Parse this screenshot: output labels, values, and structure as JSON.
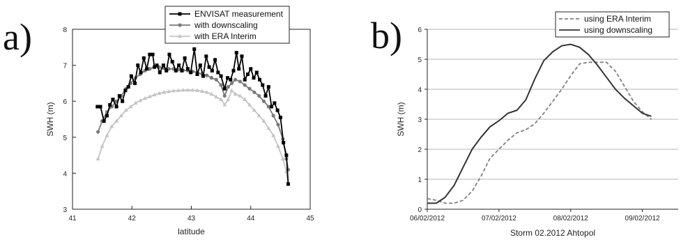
{
  "panels": {
    "a_letter": "a)",
    "b_letter": "b)"
  },
  "chart_data": [
    {
      "type": "line",
      "title": "",
      "xlabel": "latitude",
      "ylabel": "SWH (m)",
      "xlim": [
        41,
        45
      ],
      "ylim": [
        3,
        8
      ],
      "xticks": [
        41,
        42,
        43,
        44,
        45
      ],
      "yticks": [
        3,
        4,
        5,
        6,
        7,
        8
      ],
      "grid": false,
      "legend": "top-right",
      "series": [
        {
          "name": "ENVISAT measurement",
          "color": "#000000",
          "marker": "square",
          "x": [
            41.42,
            41.47,
            41.53,
            41.58,
            41.63,
            41.68,
            41.74,
            41.79,
            41.84,
            41.89,
            41.94,
            41.99,
            42.05,
            42.1,
            42.15,
            42.2,
            42.25,
            42.3,
            42.35,
            42.38,
            42.42,
            42.47,
            42.53,
            42.58,
            42.63,
            42.68,
            42.74,
            42.79,
            42.84,
            42.89,
            42.94,
            42.99,
            43.05,
            43.1,
            43.15,
            43.2,
            43.25,
            43.3,
            43.35,
            43.4,
            43.45,
            43.5,
            43.56,
            43.61,
            43.66,
            43.71,
            43.76,
            43.8,
            43.85,
            43.9,
            43.95,
            44.0,
            44.05,
            44.1,
            44.15,
            44.2,
            44.25,
            44.3,
            44.35,
            44.4,
            44.45,
            44.5,
            44.55,
            44.6,
            44.63
          ],
          "values": [
            5.85,
            5.85,
            5.45,
            5.6,
            5.9,
            6.05,
            5.85,
            6.15,
            6.0,
            6.3,
            6.4,
            6.7,
            6.5,
            7.0,
            6.8,
            7.2,
            6.9,
            7.3,
            7.3,
            6.95,
            7.0,
            6.8,
            7.0,
            6.85,
            7.3,
            7.1,
            6.85,
            7.0,
            6.85,
            7.2,
            6.9,
            6.8,
            7.45,
            6.75,
            7.0,
            6.7,
            7.25,
            6.95,
            6.85,
            7.15,
            6.8,
            6.7,
            6.35,
            6.65,
            6.6,
            6.85,
            7.35,
            6.9,
            7.25,
            6.6,
            6.75,
            6.9,
            6.65,
            6.8,
            6.6,
            6.45,
            6.15,
            6.4,
            5.85,
            5.95,
            5.75,
            5.55,
            4.85,
            4.5,
            3.7
          ]
        },
        {
          "name": "with downscaling",
          "color": "#7a7a7a",
          "marker": "circle",
          "x": [
            41.43,
            41.5,
            41.58,
            41.66,
            41.74,
            41.82,
            41.9,
            41.98,
            42.06,
            42.14,
            42.22,
            42.3,
            42.38,
            42.46,
            42.54,
            42.62,
            42.7,
            42.78,
            42.86,
            42.94,
            43.02,
            43.1,
            43.18,
            43.26,
            43.34,
            43.42,
            43.5,
            43.56,
            43.62,
            43.68,
            43.74,
            43.82,
            43.9,
            43.98,
            44.06,
            44.14,
            44.22,
            44.3,
            44.38,
            44.46,
            44.54,
            44.6,
            44.63
          ],
          "values": [
            5.15,
            5.45,
            5.7,
            5.85,
            6.0,
            6.15,
            6.35,
            6.5,
            6.65,
            6.75,
            6.85,
            6.9,
            6.95,
            6.95,
            6.92,
            6.9,
            6.9,
            6.88,
            6.86,
            6.85,
            6.83,
            6.8,
            6.76,
            6.72,
            6.65,
            6.6,
            6.45,
            6.15,
            6.4,
            6.5,
            6.6,
            6.55,
            6.45,
            6.35,
            6.25,
            6.15,
            6.0,
            5.85,
            5.6,
            5.35,
            4.95,
            4.4,
            4.1
          ]
        },
        {
          "name": "with ERA Interim",
          "color": "#c4c4c4",
          "marker": "triangle",
          "x": [
            41.43,
            41.5,
            41.58,
            41.66,
            41.74,
            41.82,
            41.9,
            41.98,
            42.06,
            42.14,
            42.22,
            42.3,
            42.38,
            42.46,
            42.54,
            42.62,
            42.7,
            42.78,
            42.86,
            42.94,
            43.02,
            43.1,
            43.18,
            43.26,
            43.34,
            43.42,
            43.5,
            43.56,
            43.62,
            43.68,
            43.74,
            43.82,
            43.9,
            43.98,
            44.06,
            44.14,
            44.22,
            44.3,
            44.38,
            44.46,
            44.54,
            44.6,
            44.63
          ],
          "values": [
            4.4,
            4.75,
            5.05,
            5.3,
            5.45,
            5.6,
            5.75,
            5.85,
            5.95,
            6.02,
            6.08,
            6.13,
            6.18,
            6.22,
            6.25,
            6.27,
            6.29,
            6.3,
            6.31,
            6.31,
            6.31,
            6.3,
            6.28,
            6.25,
            6.2,
            6.12,
            6.05,
            5.9,
            6.05,
            6.3,
            6.2,
            6.15,
            6.05,
            5.9,
            5.75,
            5.6,
            5.45,
            5.25,
            5.05,
            4.75,
            4.4,
            4.05,
            3.7
          ]
        }
      ]
    },
    {
      "type": "line",
      "title": "",
      "xlabel": "Storm 02.2012 Ahtopol",
      "ylabel": "SWH (m)",
      "ylim": [
        0,
        6
      ],
      "yticks": [
        0,
        1,
        2,
        3,
        4,
        5,
        6
      ],
      "xlim": [
        "2012-02-06T00:00",
        "2012-02-09T12:00"
      ],
      "xtick_labels": [
        "06/02/2012",
        "07/02/2012",
        "08/02/2012",
        "09/02/2012"
      ],
      "grid": true,
      "legend": "top-right",
      "series": [
        {
          "name": "using ERA Interim",
          "color": "#808080",
          "dash": "dashed",
          "x": [
            "2012-02-06T00:00",
            "2012-02-06T03:00",
            "2012-02-06T06:00",
            "2012-02-06T09:00",
            "2012-02-06T12:00",
            "2012-02-06T15:00",
            "2012-02-06T18:00",
            "2012-02-06T21:00",
            "2012-02-07T00:00",
            "2012-02-07T03:00",
            "2012-02-07T06:00",
            "2012-02-07T09:00",
            "2012-02-07T12:00",
            "2012-02-07T15:00",
            "2012-02-07T18:00",
            "2012-02-07T21:00",
            "2012-02-08T00:00",
            "2012-02-08T03:00",
            "2012-02-08T06:00",
            "2012-02-08T09:00",
            "2012-02-08T12:00",
            "2012-02-08T15:00",
            "2012-02-08T18:00",
            "2012-02-08T21:00",
            "2012-02-09T00:00",
            "2012-02-09T03:00"
          ],
          "values": [
            0.35,
            0.3,
            0.2,
            0.2,
            0.3,
            0.6,
            1.1,
            1.7,
            2.0,
            2.3,
            2.55,
            2.65,
            2.85,
            3.2,
            3.6,
            4.0,
            4.45,
            4.85,
            4.9,
            4.9,
            4.9,
            4.6,
            4.1,
            3.6,
            3.25,
            3.0
          ]
        },
        {
          "name": "using downscaling",
          "color": "#333333",
          "dash": "solid",
          "x": [
            "2012-02-06T00:00",
            "2012-02-06T03:00",
            "2012-02-06T06:00",
            "2012-02-06T09:00",
            "2012-02-06T12:00",
            "2012-02-06T15:00",
            "2012-02-06T18:00",
            "2012-02-06T21:00",
            "2012-02-07T00:00",
            "2012-02-07T03:00",
            "2012-02-07T06:00",
            "2012-02-07T09:00",
            "2012-02-07T12:00",
            "2012-02-07T15:00",
            "2012-02-07T18:00",
            "2012-02-07T21:00",
            "2012-02-08T00:00",
            "2012-02-08T03:00",
            "2012-02-08T06:00",
            "2012-02-08T09:00",
            "2012-02-08T12:00",
            "2012-02-08T15:00",
            "2012-02-08T18:00",
            "2012-02-08T21:00",
            "2012-02-09T00:00",
            "2012-02-09T03:00"
          ],
          "values": [
            0.2,
            0.2,
            0.4,
            0.8,
            1.4,
            2.0,
            2.4,
            2.75,
            2.95,
            3.2,
            3.3,
            3.65,
            4.35,
            4.95,
            5.25,
            5.45,
            5.5,
            5.4,
            5.15,
            4.8,
            4.4,
            4.0,
            3.7,
            3.45,
            3.2,
            3.1
          ]
        }
      ]
    }
  ]
}
